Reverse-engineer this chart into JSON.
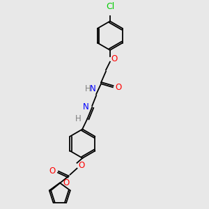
{
  "bg_color": "#e8e8e8",
  "bond_color": "#000000",
  "atom_colors": {
    "O": "#ff0000",
    "N": "#0000ff",
    "Cl": "#00cc00",
    "C": "#000000",
    "H": "#808080"
  },
  "font_size": 8.5,
  "lw": 1.3,
  "ring_r": 20,
  "furan_r": 15
}
